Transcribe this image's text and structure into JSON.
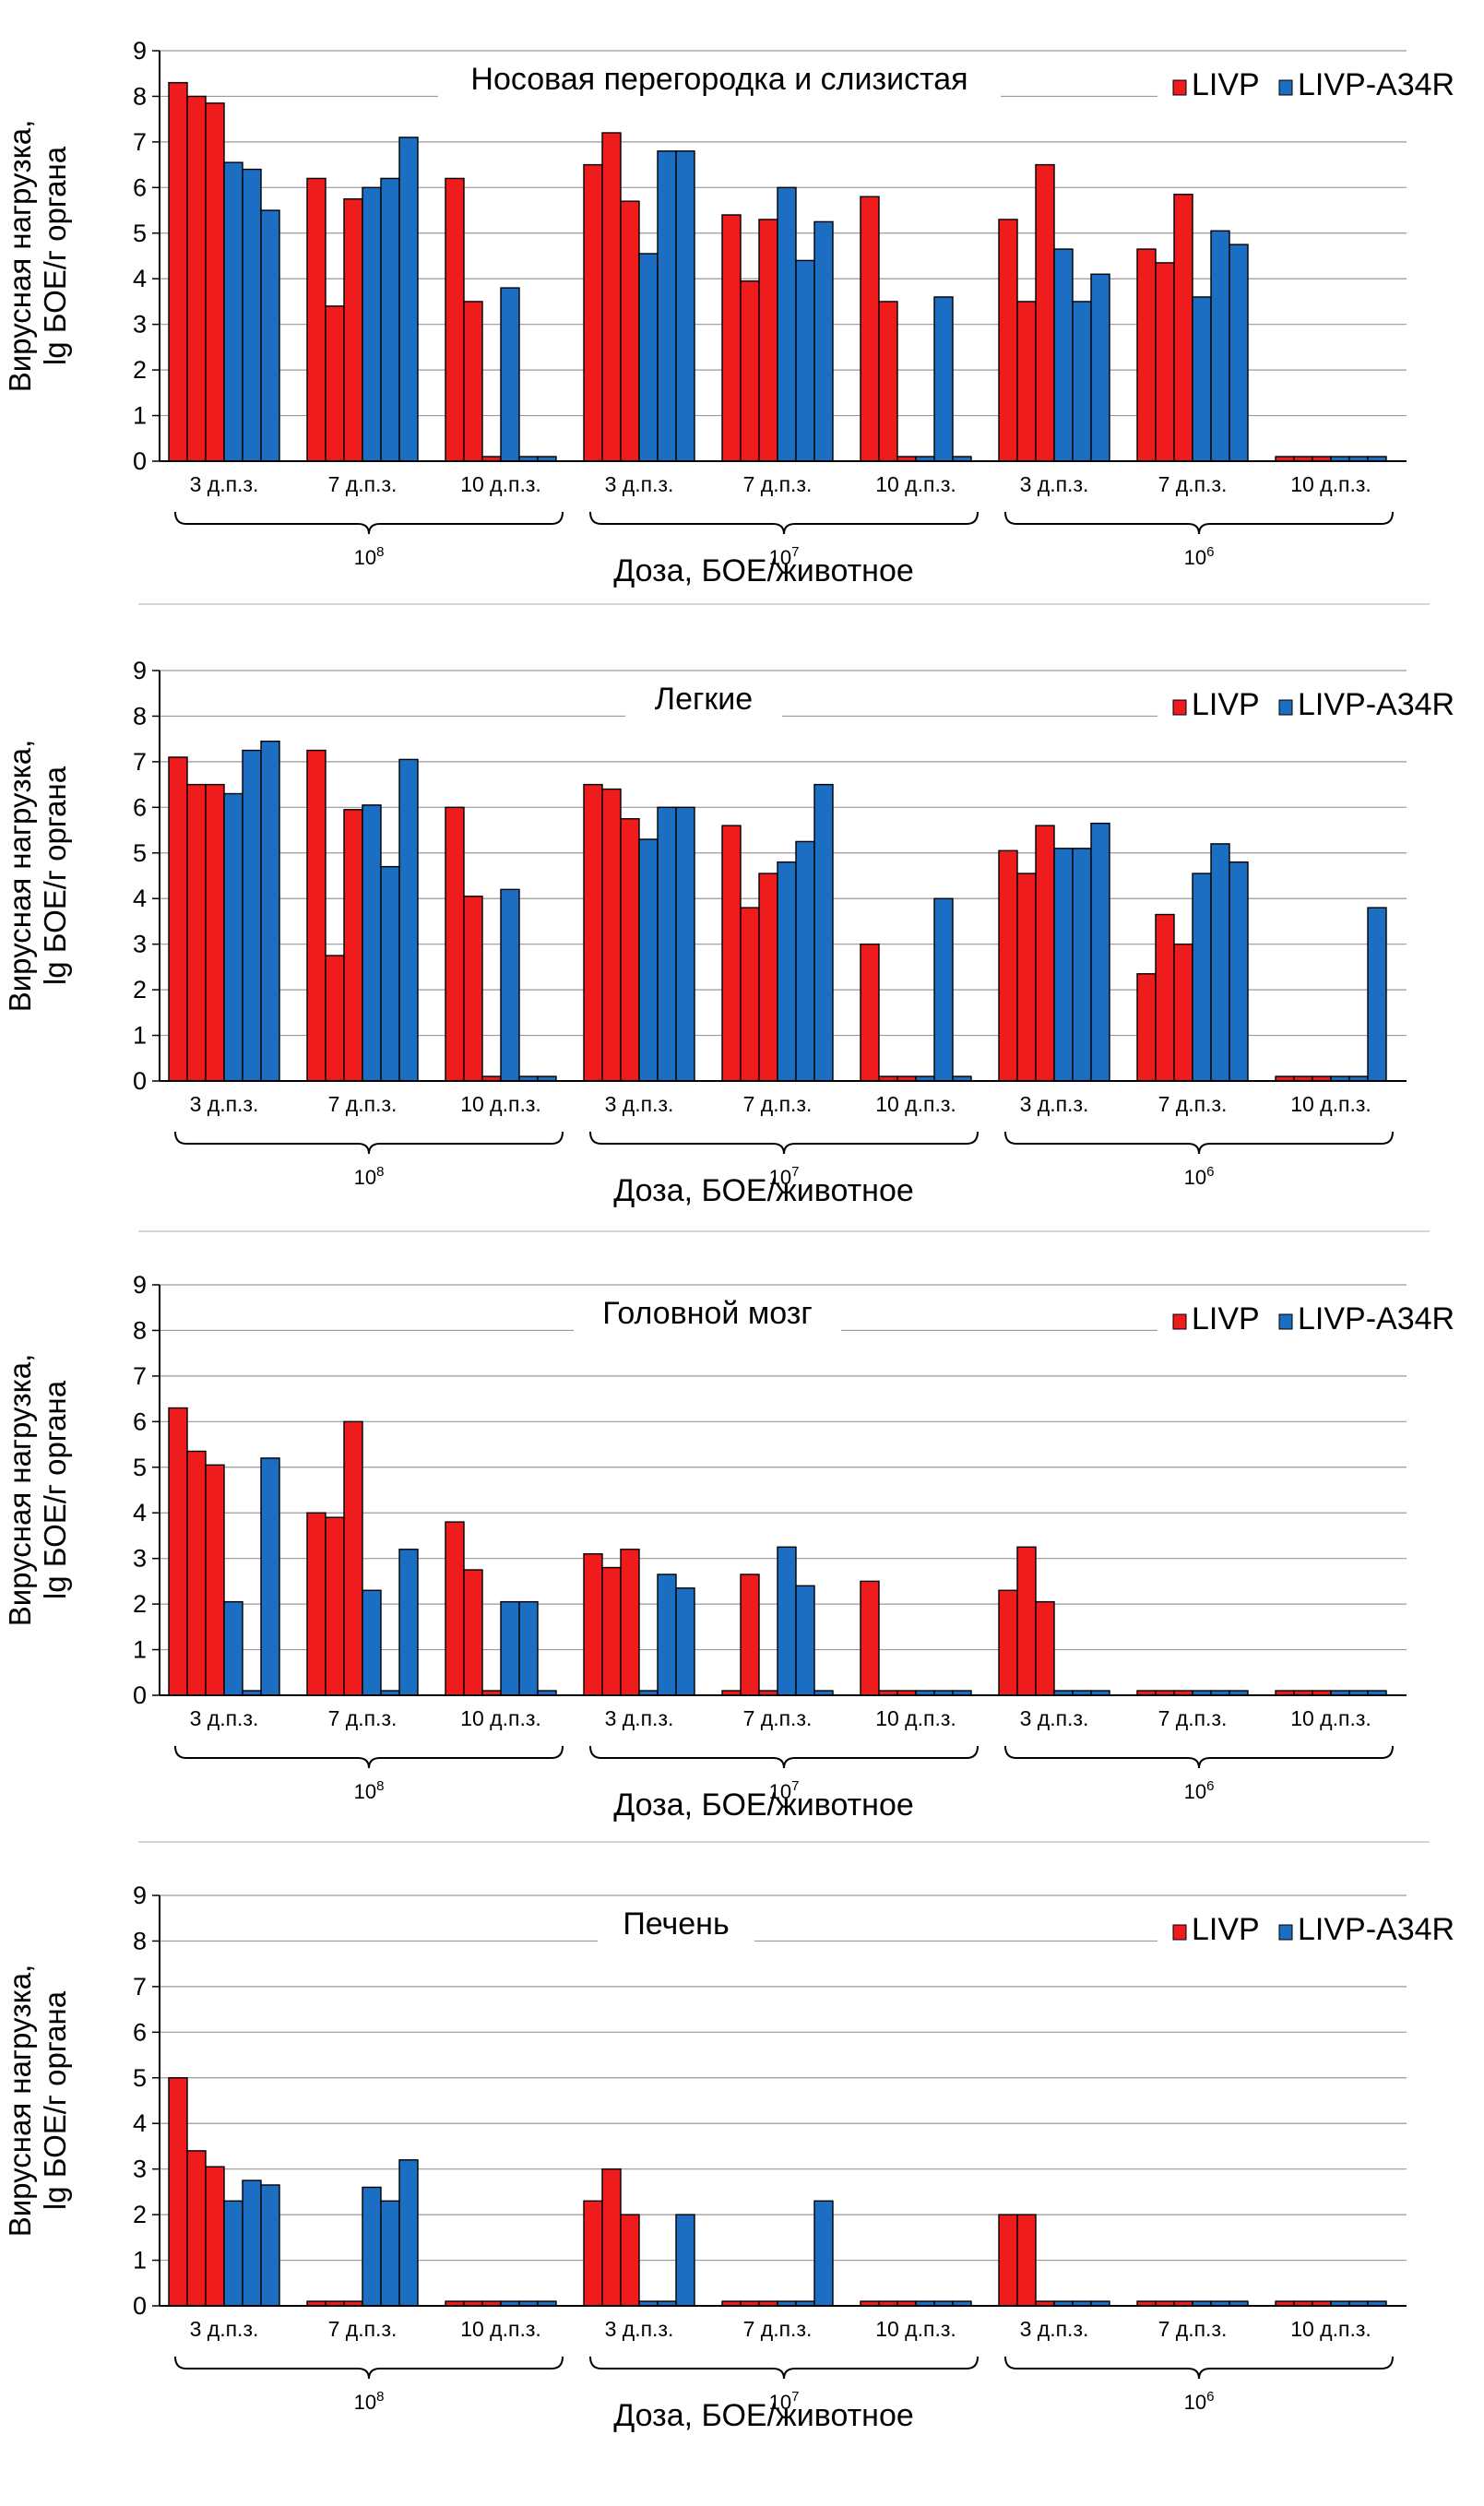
{
  "colors": {
    "LIVP": "#ee1c1c",
    "LIVP-A34R": "#1b6ec2"
  },
  "legend": [
    {
      "name": "LIVP",
      "color": "#ee1c1c"
    },
    {
      "name": "LIVP-A34R",
      "color": "#1b6ec2"
    }
  ],
  "dose_groups": [
    {
      "base": "10",
      "exp": "8"
    },
    {
      "base": "10",
      "exp": "7"
    },
    {
      "base": "10",
      "exp": "6"
    }
  ],
  "timepoints": [
    "3 д.п.з.",
    "7 д.п.з.",
    "10 д.п.з."
  ],
  "chart_data": [
    {
      "type": "bar",
      "title": "Носовая перегородка и слизистая",
      "ylabel": [
        "Вирусная нагрузка,",
        "lg БОЕ/г органа"
      ],
      "xlabel": "Доза, БОЕ/животное",
      "ylim": [
        0,
        9
      ],
      "yticks": [
        0,
        1,
        2,
        3,
        4,
        5,
        6,
        7,
        8,
        9
      ],
      "groups": [
        {
          "dose": "10^8",
          "time": "3 д.п.з.",
          "LIVP": [
            8.3,
            8.0,
            7.85
          ],
          "LIVP-A34R": [
            6.55,
            6.4,
            5.5
          ]
        },
        {
          "dose": "10^8",
          "time": "7 д.п.з.",
          "LIVP": [
            6.2,
            3.4,
            5.75
          ],
          "LIVP-A34R": [
            6.0,
            6.2,
            7.1
          ]
        },
        {
          "dose": "10^8",
          "time": "10 д.п.з.",
          "LIVP": [
            6.2,
            3.5,
            0.1
          ],
          "LIVP-A34R": [
            3.8,
            0.1,
            0.1
          ]
        },
        {
          "dose": "10^7",
          "time": "3 д.п.з.",
          "LIVP": [
            6.5,
            7.2,
            5.7
          ],
          "LIVP-A34R": [
            4.55,
            6.8,
            6.8
          ]
        },
        {
          "dose": "10^7",
          "time": "7 д.п.з.",
          "LIVP": [
            5.4,
            3.95,
            5.3
          ],
          "LIVP-A34R": [
            6.0,
            4.4,
            5.25
          ]
        },
        {
          "dose": "10^7",
          "time": "10 д.п.з.",
          "LIVP": [
            5.8,
            3.5,
            0.1
          ],
          "LIVP-A34R": [
            0.1,
            3.6,
            0.1
          ]
        },
        {
          "dose": "10^6",
          "time": "3 д.п.з.",
          "LIVP": [
            5.3,
            3.5,
            6.5
          ],
          "LIVP-A34R": [
            4.65,
            3.5,
            4.1
          ]
        },
        {
          "dose": "10^6",
          "time": "7 д.п.з.",
          "LIVP": [
            4.65,
            4.35,
            5.85
          ],
          "LIVP-A34R": [
            3.6,
            5.05,
            4.75
          ]
        },
        {
          "dose": "10^6",
          "time": "10 д.п.з.",
          "LIVP": [
            0.1,
            0.1,
            0.1
          ],
          "LIVP-A34R": [
            0.1,
            0.1,
            0.1
          ]
        }
      ]
    },
    {
      "type": "bar",
      "title": "Легкие",
      "ylabel": [
        "Вирусная нагрузка,",
        "lg БОЕ/г органа"
      ],
      "xlabel": "Доза, БОЕ/животное",
      "ylim": [
        0,
        9
      ],
      "yticks": [
        0,
        1,
        2,
        3,
        4,
        5,
        6,
        7,
        8,
        9
      ],
      "groups": [
        {
          "dose": "10^8",
          "time": "3 д.п.з.",
          "LIVP": [
            7.1,
            6.5,
            6.5
          ],
          "LIVP-A34R": [
            6.3,
            7.25,
            7.45
          ]
        },
        {
          "dose": "10^8",
          "time": "7 д.п.з.",
          "LIVP": [
            7.25,
            2.75,
            5.95
          ],
          "LIVP-A34R": [
            6.05,
            4.7,
            7.05
          ]
        },
        {
          "dose": "10^8",
          "time": "10 д.п.з.",
          "LIVP": [
            6.0,
            4.05,
            0.1
          ],
          "LIVP-A34R": [
            4.2,
            0.1,
            0.1
          ]
        },
        {
          "dose": "10^7",
          "time": "3 д.п.з.",
          "LIVP": [
            6.5,
            6.4,
            5.75
          ],
          "LIVP-A34R": [
            5.3,
            6.0,
            6.0
          ]
        },
        {
          "dose": "10^7",
          "time": "7 д.п.з.",
          "LIVP": [
            5.6,
            3.8,
            4.55
          ],
          "LIVP-A34R": [
            4.8,
            5.25,
            6.5
          ]
        },
        {
          "dose": "10^7",
          "time": "10 д.п.з.",
          "LIVP": [
            3.0,
            0.1,
            0.1
          ],
          "LIVP-A34R": [
            0.1,
            4.0,
            0.1
          ]
        },
        {
          "dose": "10^6",
          "time": "3 д.п.з.",
          "LIVP": [
            5.05,
            4.55,
            5.6
          ],
          "LIVP-A34R": [
            5.1,
            5.1,
            5.65
          ]
        },
        {
          "dose": "10^6",
          "time": "7 д.п.з.",
          "LIVP": [
            2.35,
            3.65,
            3.0
          ],
          "LIVP-A34R": [
            4.55,
            5.2,
            4.8
          ]
        },
        {
          "dose": "10^6",
          "time": "10 д.п.з.",
          "LIVP": [
            0.1,
            0.1,
            0.1
          ],
          "LIVP-A34R": [
            0.1,
            0.1,
            3.8
          ]
        }
      ]
    },
    {
      "type": "bar",
      "title": "Головной мозг",
      "ylabel": [
        "Вирусная нагрузка,",
        "lg БОЕ/г органа"
      ],
      "xlabel": "Доза, БОЕ/животное",
      "ylim": [
        0,
        9
      ],
      "yticks": [
        0,
        1,
        2,
        3,
        4,
        5,
        6,
        7,
        8,
        9
      ],
      "groups": [
        {
          "dose": "10^8",
          "time": "3 д.п.з.",
          "LIVP": [
            6.3,
            5.35,
            5.05
          ],
          "LIVP-A34R": [
            2.05,
            0.1,
            5.2
          ]
        },
        {
          "dose": "10^8",
          "time": "7 д.п.з.",
          "LIVP": [
            4.0,
            3.9,
            6.0
          ],
          "LIVP-A34R": [
            2.3,
            0.1,
            3.2
          ]
        },
        {
          "dose": "10^8",
          "time": "10 д.п.з.",
          "LIVP": [
            3.8,
            2.75,
            0.1
          ],
          "LIVP-A34R": [
            2.05,
            2.05,
            0.1
          ]
        },
        {
          "dose": "10^7",
          "time": "3 д.п.з.",
          "LIVP": [
            3.1,
            2.8,
            3.2
          ],
          "LIVP-A34R": [
            0.1,
            2.65,
            2.35
          ]
        },
        {
          "dose": "10^7",
          "time": "7 д.п.з.",
          "LIVP": [
            0.1,
            2.65,
            0.1
          ],
          "LIVP-A34R": [
            3.25,
            2.4,
            0.1
          ]
        },
        {
          "dose": "10^7",
          "time": "10 д.п.з.",
          "LIVP": [
            2.5,
            0.1,
            0.1
          ],
          "LIVP-A34R": [
            0.1,
            0.1,
            0.1
          ]
        },
        {
          "dose": "10^6",
          "time": "3 д.п.з.",
          "LIVP": [
            2.3,
            3.25,
            2.05
          ],
          "LIVP-A34R": [
            0.1,
            0.1,
            0.1
          ]
        },
        {
          "dose": "10^6",
          "time": "7 д.п.з.",
          "LIVP": [
            0.1,
            0.1,
            0.1
          ],
          "LIVP-A34R": [
            0.1,
            0.1,
            0.1
          ]
        },
        {
          "dose": "10^6",
          "time": "10 д.п.з.",
          "LIVP": [
            0.1,
            0.1,
            0.1
          ],
          "LIVP-A34R": [
            0.1,
            0.1,
            0.1
          ]
        }
      ]
    },
    {
      "type": "bar",
      "title": "Печень",
      "ylabel": [
        "Вирусная нагрузка,",
        "lg БОЕ/г органа"
      ],
      "xlabel": "Доза, БОЕ/животное",
      "ylim": [
        0,
        9
      ],
      "yticks": [
        0,
        1,
        2,
        3,
        4,
        5,
        6,
        7,
        8,
        9
      ],
      "groups": [
        {
          "dose": "10^8",
          "time": "3 д.п.з.",
          "LIVP": [
            5.0,
            3.4,
            3.05
          ],
          "LIVP-A34R": [
            2.3,
            2.75,
            2.65
          ]
        },
        {
          "dose": "10^8",
          "time": "7 д.п.з.",
          "LIVP": [
            0.1,
            0.1,
            0.1
          ],
          "LIVP-A34R": [
            2.6,
            2.3,
            3.2
          ]
        },
        {
          "dose": "10^8",
          "time": "10 д.п.з.",
          "LIVP": [
            0.1,
            0.1,
            0.1
          ],
          "LIVP-A34R": [
            0.1,
            0.1,
            0.1
          ]
        },
        {
          "dose": "10^7",
          "time": "3 д.п.з.",
          "LIVP": [
            2.3,
            3.0,
            2.0
          ],
          "LIVP-A34R": [
            0.1,
            0.1,
            2.0
          ]
        },
        {
          "dose": "10^7",
          "time": "7 д.п.з.",
          "LIVP": [
            0.1,
            0.1,
            0.1
          ],
          "LIVP-A34R": [
            0.1,
            0.1,
            2.3
          ]
        },
        {
          "dose": "10^7",
          "time": "10 д.п.з.",
          "LIVP": [
            0.1,
            0.1,
            0.1
          ],
          "LIVP-A34R": [
            0.1,
            0.1,
            0.1
          ]
        },
        {
          "dose": "10^6",
          "time": "3 д.п.з.",
          "LIVP": [
            2.0,
            2.0,
            0.1
          ],
          "LIVP-A34R": [
            0.1,
            0.1,
            0.1
          ]
        },
        {
          "dose": "10^6",
          "time": "7 д.п.з.",
          "LIVP": [
            0.1,
            0.1,
            0.1
          ],
          "LIVP-A34R": [
            0.1,
            0.1,
            0.1
          ]
        },
        {
          "dose": "10^6",
          "time": "10 д.п.з.",
          "LIVP": [
            0.1,
            0.1,
            0.1
          ],
          "LIVP-A34R": [
            0.1,
            0.1,
            0.1
          ]
        }
      ]
    }
  ]
}
